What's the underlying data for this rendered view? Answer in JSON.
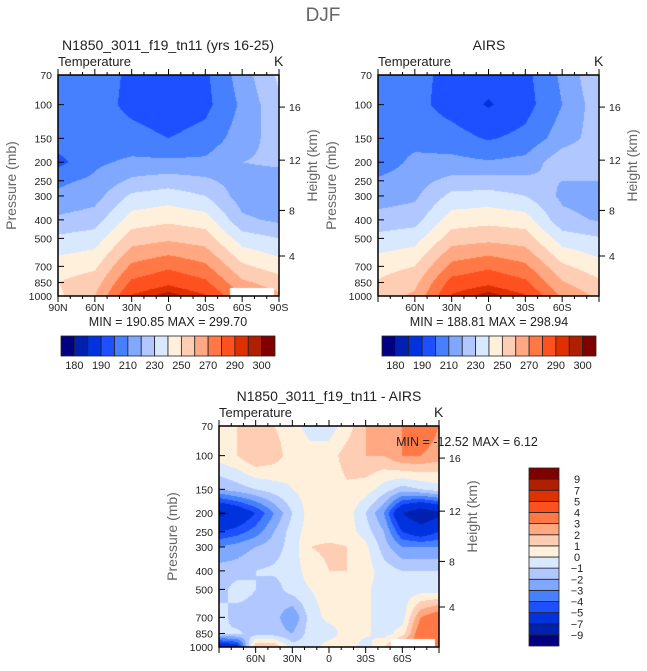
{
  "title": "DJF",
  "chart_data": [
    {
      "type": "heatmap",
      "title": "N1850_3011_f19_tn11 (yrs 16-25)",
      "subtitle_left": "Temperature",
      "units": "K",
      "ylabel": "Pressure (mb)",
      "ylabel_right": "Height (km)",
      "x": [
        90,
        60,
        30,
        0,
        -30,
        -60,
        -90
      ],
      "x_tick_labels": [
        "90N",
        "60N",
        "30N",
        "0",
        "30S",
        "60S",
        "90S"
      ],
      "y": [
        70,
        100,
        150,
        200,
        250,
        300,
        400,
        500,
        700,
        850,
        1000
      ],
      "y_tick_labels": [
        "70",
        "100",
        "150",
        "200",
        "250",
        "300",
        "400",
        "500",
        "700",
        "850",
        "1000"
      ],
      "y_right_ticks": [
        {
          "label": "16",
          "p": 103
        },
        {
          "label": "12",
          "p": 195
        },
        {
          "label": "8",
          "p": 357
        },
        {
          "label": "4",
          "p": 618
        }
      ],
      "values": [
        [
          205,
          205,
          198,
          195,
          198,
          215,
          232
        ],
        [
          203,
          205,
          197,
          193,
          197,
          212,
          228
        ],
        [
          205,
          205,
          204,
          200,
          204,
          215,
          225
        ],
        [
          197,
          208,
          212,
          212,
          212,
          220,
          222
        ],
        [
          208,
          212,
          222,
          225,
          222,
          215,
          215
        ],
        [
          212,
          216,
          232,
          235,
          230,
          215,
          212
        ],
        [
          222,
          225,
          245,
          248,
          245,
          222,
          218
        ],
        [
          232,
          235,
          255,
          258,
          255,
          235,
          230
        ],
        [
          245,
          248,
          272,
          278,
          272,
          252,
          245
        ],
        [
          250,
          255,
          282,
          288,
          282,
          262,
          255
        ],
        [
          248,
          260,
          291,
          298,
          291,
          270,
          262
        ]
      ],
      "stats": "MIN = 190.85   MAX = 299.70",
      "levels": [
        180,
        185,
        190,
        200,
        210,
        220,
        230,
        240,
        250,
        260,
        270,
        280,
        290,
        295,
        300
      ],
      "colorbar_labels": [
        "180",
        "190",
        "210",
        "230",
        "250",
        "270",
        "290",
        "300"
      ]
    },
    {
      "type": "heatmap",
      "title": "AIRS",
      "subtitle_left": "Temperature",
      "units": "K",
      "ylabel": "Pressure (mb)",
      "ylabel_right": "Height (km)",
      "x": [
        90,
        60,
        30,
        0,
        -30,
        -60,
        -90
      ],
      "x_tick_labels": [
        "60N",
        "30N",
        "0",
        "30S",
        "60S"
      ],
      "y": [
        70,
        100,
        150,
        200,
        250,
        300,
        400,
        500,
        700,
        850,
        1000
      ],
      "y_tick_labels": [
        "70",
        "100",
        "150",
        "200",
        "250",
        "300",
        "400",
        "500",
        "700",
        "850",
        "1000"
      ],
      "y_right_ticks": [
        {
          "label": "16",
          "p": 103
        },
        {
          "label": "12",
          "p": 195
        },
        {
          "label": "8",
          "p": 357
        },
        {
          "label": "4",
          "p": 618
        }
      ],
      "values": [
        [
          204,
          203,
          197,
          194,
          197,
          212,
          229
        ],
        [
          202,
          203,
          196,
          189,
          196,
          210,
          226
        ],
        [
          206,
          206,
          204,
          199,
          203,
          215,
          225
        ],
        [
          203,
          213,
          213,
          211,
          213,
          227,
          229
        ],
        [
          212,
          216,
          223,
          224,
          223,
          220,
          220
        ],
        [
          215,
          218,
          233,
          234,
          230,
          218,
          215
        ],
        [
          224,
          226,
          245,
          247,
          245,
          223,
          219
        ],
        [
          233,
          236,
          255,
          257,
          255,
          235,
          231
        ],
        [
          246,
          250,
          273,
          278,
          272,
          252,
          244
        ],
        [
          251,
          257,
          284,
          288,
          282,
          261,
          252
        ],
        [
          255,
          262,
          291,
          298,
          291,
          268,
          258
        ]
      ],
      "stats": "MIN = 188.81   MAX = 298.94",
      "levels": [
        180,
        185,
        190,
        200,
        210,
        220,
        230,
        240,
        250,
        260,
        270,
        280,
        290,
        295,
        300
      ],
      "colorbar_labels": [
        "180",
        "190",
        "210",
        "230",
        "250",
        "270",
        "290",
        "300"
      ]
    },
    {
      "type": "heatmap",
      "title": "N1850_3011_f19_tn11 - AIRS",
      "subtitle_left": "Temperature",
      "units": "K",
      "ylabel": "Pressure (mb)",
      "ylabel_right": "Height (km)",
      "x": [
        90,
        75,
        60,
        45,
        30,
        15,
        0,
        -15,
        -30,
        -45,
        -60,
        -75,
        -90
      ],
      "x_tick_labels": [
        "60N",
        "30N",
        "0",
        "30S",
        "60S"
      ],
      "y": [
        70,
        100,
        150,
        200,
        250,
        300,
        400,
        500,
        700,
        850,
        1000
      ],
      "y_tick_labels": [
        "70",
        "100",
        "150",
        "200",
        "250",
        "300",
        "400",
        "500",
        "700",
        "850",
        "1000"
      ],
      "y_right_ticks": [
        {
          "label": "16",
          "p": 103
        },
        {
          "label": "12",
          "p": 195
        },
        {
          "label": "8",
          "p": 357
        },
        {
          "label": "4",
          "p": 618
        }
      ],
      "values": [
        [
          0.5,
          1,
          2,
          1,
          0.5,
          -0.5,
          -0.5,
          0.5,
          2,
          3,
          3,
          4,
          3
        ],
        [
          0.5,
          1,
          2,
          1.5,
          0.5,
          0.5,
          0.5,
          1.5,
          2,
          2,
          3,
          3,
          2.5
        ],
        [
          -2,
          -1.5,
          -1,
          -0.5,
          0,
          0.5,
          0.5,
          0.8,
          0.5,
          -0.5,
          -1.5,
          -1,
          -0.5
        ],
        [
          -7.5,
          -6.5,
          -5,
          -3,
          -1,
          0.5,
          0.5,
          0.5,
          -1,
          -3,
          -7,
          -8.5,
          -7.5
        ],
        [
          -5,
          -4.5,
          -3.5,
          -2,
          -0.5,
          0.5,
          0.5,
          0.5,
          -0.5,
          -2,
          -5,
          -6,
          -5
        ],
        [
          -3,
          -2.5,
          -2,
          -1.5,
          -0.5,
          1,
          1.2,
          1,
          0.3,
          -1.5,
          -3,
          -3,
          -3
        ],
        [
          -1.5,
          -1.5,
          -1,
          -0.8,
          -0.5,
          0.5,
          1,
          1,
          0.5,
          -0.5,
          -1,
          -1,
          -1
        ],
        [
          -1.5,
          -0.5,
          -1,
          -1.5,
          -0.5,
          0,
          0.5,
          0.3,
          0.2,
          -0.5,
          -0.5,
          -0.5,
          -0.5
        ],
        [
          -0.5,
          -1.5,
          -1.5,
          -1.5,
          -3,
          -0.5,
          0.3,
          0.3,
          0.2,
          -0.5,
          -0.5,
          3,
          4
        ],
        [
          -1,
          -0.8,
          -1.5,
          -1.5,
          -2,
          -0.5,
          -0.5,
          0.5,
          0.2,
          -0.5,
          0.5,
          4,
          3
        ],
        [
          -7,
          -6,
          2,
          2,
          -0.5,
          -0.5,
          0.5,
          0.5,
          -0.5,
          1,
          3,
          4,
          3
        ]
      ],
      "stats": "MIN = -12.52   MAX =    6.12",
      "levels": [
        -9,
        -7,
        -5,
        -4,
        -3,
        -2,
        -1,
        0,
        1,
        2,
        3,
        4,
        5,
        7,
        9
      ],
      "colorbar_labels": [
        "9",
        "7",
        "5",
        "4",
        "3",
        "2",
        "1",
        "0",
        "-1",
        "-2",
        "-3",
        "-4",
        "-5",
        "-7",
        "-9"
      ]
    }
  ],
  "colors": [
    "#000080",
    "#0020b0",
    "#0033dd",
    "#1e50ff",
    "#4680ff",
    "#80a8ff",
    "#b0c8ff",
    "#d8e8ff",
    "#fff0dc",
    "#ffcdb4",
    "#ffa882",
    "#ff7846",
    "#ff5020",
    "#e03000",
    "#b02000",
    "#800000"
  ]
}
